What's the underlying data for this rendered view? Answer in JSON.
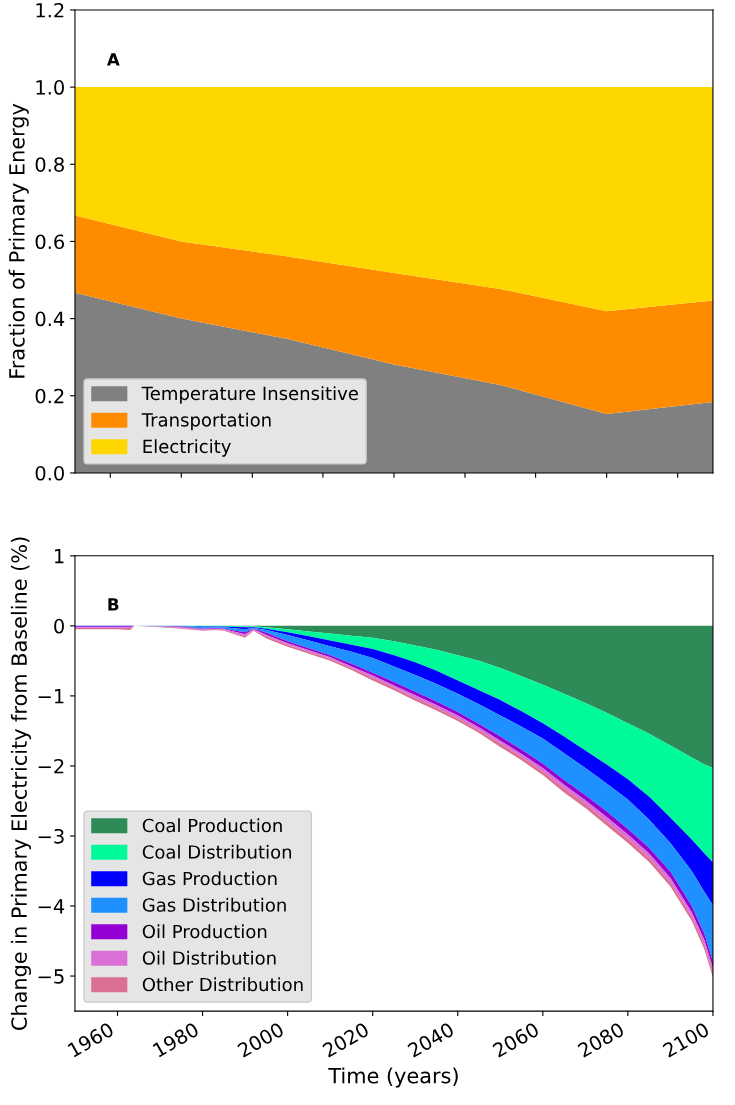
{
  "chart_data": [
    {
      "type": "area",
      "stacked": true,
      "ylabel": "Fraction of Primary Energy",
      "annotations": [
        "A"
      ],
      "legend": "bottom left",
      "tick_labels": "y",
      "x": [
        1950,
        1975,
        2000,
        2025,
        2050,
        2075,
        2100
      ],
      "xlim": [
        1950,
        2100
      ],
      "xticks": [
        {
          "value": 1958.3,
          "label": null
        },
        {
          "value": 1975,
          "label": null
        },
        {
          "value": 1991.7,
          "label": null
        },
        {
          "value": 2008.3,
          "label": null
        },
        {
          "value": 2025,
          "label": null
        },
        {
          "value": 2041.7,
          "label": null
        },
        {
          "value": 2058.3,
          "label": null
        },
        {
          "value": 2075,
          "label": null
        },
        {
          "value": 2091.7,
          "label": null
        }
      ],
      "ylim": [
        0,
        1.2
      ],
      "yticks": [
        {
          "value": 0,
          "label": "0.0"
        },
        {
          "value": 0.2,
          "label": "0.2"
        },
        {
          "value": 0.4,
          "label": "0.4"
        },
        {
          "value": 0.6,
          "label": "0.6"
        },
        {
          "value": 0.8,
          "label": "0.8"
        },
        {
          "value": 1.0,
          "label": "1.0"
        },
        {
          "value": 1.2,
          "label": "1.2"
        }
      ],
      "series": [
        {
          "name": "Temperature Insensitive",
          "color": "#808080",
          "values": [
            0.467,
            0.4,
            0.347,
            0.281,
            0.228,
            0.153,
            0.184
          ]
        },
        {
          "name": "Transportation",
          "color": "#ff8c00",
          "values": [
            0.2,
            0.2,
            0.214,
            0.237,
            0.249,
            0.266,
            0.263
          ]
        },
        {
          "name": "Electricity",
          "color": "#ffd700",
          "values": [
            0.333,
            0.4,
            0.439,
            0.482,
            0.523,
            0.581,
            0.553
          ]
        }
      ]
    },
    {
      "type": "area",
      "stacked": true,
      "ylabel": "Change in Primary Electricity from Baseline (%)",
      "xlabel": "Time (years)",
      "annotations": [
        "B"
      ],
      "legend": "bottom left",
      "x": [
        1950,
        1960,
        1963,
        1964,
        1970,
        1975,
        1980,
        1983,
        1985,
        1990,
        1992,
        1995,
        2000,
        2005,
        2010,
        2015,
        2020,
        2025,
        2030,
        2035,
        2040,
        2045,
        2050,
        2055,
        2060,
        2065,
        2070,
        2075,
        2080,
        2085,
        2090,
        2095,
        2098,
        2100
      ],
      "xlim": [
        1950,
        2100
      ],
      "xticks": [
        1960,
        1980,
        2000,
        2020,
        2040,
        2060,
        2080,
        2100
      ],
      "ylim": [
        -5.5,
        1
      ],
      "yticks": [
        {
          "value": -5,
          "label": "−5"
        },
        {
          "value": -4,
          "label": "−4"
        },
        {
          "value": -3,
          "label": "−3"
        },
        {
          "value": -2,
          "label": "−2"
        },
        {
          "value": -1,
          "label": "−1"
        },
        {
          "value": 0,
          "label": "0"
        },
        {
          "value": 1,
          "label": "1"
        }
      ],
      "series": [
        {
          "name": "Coal Production",
          "color": "#2e8b57",
          "values": [
            0,
            0,
            0,
            0,
            0,
            0,
            0,
            0,
            0,
            -0.01,
            -0.01,
            -0.02,
            -0.05,
            -0.08,
            -0.11,
            -0.14,
            -0.17,
            -0.22,
            -0.28,
            -0.34,
            -0.42,
            -0.5,
            -0.6,
            -0.72,
            -0.84,
            -0.97,
            -1.1,
            -1.24,
            -1.39,
            -1.54,
            -1.71,
            -1.88,
            -1.98,
            -2.03
          ]
        },
        {
          "name": "Coal Distribution",
          "color": "#00fa9a",
          "values": [
            0,
            0,
            0,
            0,
            0,
            0,
            -0.01,
            -0.01,
            -0.01,
            -0.01,
            -0.01,
            -0.02,
            -0.04,
            -0.07,
            -0.1,
            -0.13,
            -0.16,
            -0.2,
            -0.24,
            -0.3,
            -0.36,
            -0.42,
            -0.46,
            -0.5,
            -0.55,
            -0.61,
            -0.68,
            -0.74,
            -0.8,
            -0.9,
            -1.03,
            -1.17,
            -1.27,
            -1.35
          ]
        },
        {
          "name": "Gas Production",
          "color": "#0000ff",
          "values": [
            -0.01,
            -0.01,
            -0.01,
            0,
            0,
            0,
            -0.01,
            -0.01,
            -0.01,
            -0.03,
            -0.01,
            -0.02,
            -0.04,
            -0.06,
            -0.08,
            -0.1,
            -0.13,
            -0.16,
            -0.18,
            -0.19,
            -0.19,
            -0.2,
            -0.22,
            -0.22,
            -0.22,
            -0.24,
            -0.25,
            -0.27,
            -0.29,
            -0.33,
            -0.36,
            -0.45,
            -0.55,
            -0.61
          ]
        },
        {
          "name": "Gas Distribution",
          "color": "#1e90ff",
          "values": [
            0,
            0,
            0,
            0,
            -0.01,
            -0.01,
            -0.02,
            -0.01,
            -0.02,
            -0.04,
            -0.01,
            -0.04,
            -0.09,
            -0.11,
            -0.13,
            -0.17,
            -0.21,
            -0.22,
            -0.24,
            -0.25,
            -0.26,
            -0.28,
            -0.3,
            -0.33,
            -0.36,
            -0.38,
            -0.39,
            -0.4,
            -0.42,
            -0.4,
            -0.41,
            -0.5,
            -0.6,
            -0.81
          ]
        },
        {
          "name": "Oil Production",
          "color": "#9400d3",
          "values": [
            -0.01,
            -0.01,
            -0.01,
            0,
            0,
            -0.01,
            -0.01,
            -0.01,
            -0.01,
            -0.03,
            -0.01,
            -0.03,
            -0.03,
            -0.03,
            -0.03,
            -0.04,
            -0.04,
            -0.05,
            -0.05,
            -0.05,
            -0.05,
            -0.05,
            -0.06,
            -0.06,
            -0.06,
            -0.07,
            -0.07,
            -0.08,
            -0.08,
            -0.08,
            -0.09,
            -0.09,
            -0.09,
            -0.09
          ]
        },
        {
          "name": "Oil Distribution",
          "color": "#da70d6",
          "values": [
            -0.01,
            -0.01,
            -0.01,
            0,
            0,
            -0.01,
            -0.01,
            -0.01,
            -0.01,
            -0.03,
            -0.01,
            -0.02,
            -0.02,
            -0.02,
            -0.02,
            -0.02,
            -0.03,
            -0.03,
            -0.04,
            -0.04,
            -0.04,
            -0.04,
            -0.04,
            -0.04,
            -0.05,
            -0.05,
            -0.05,
            -0.06,
            -0.06,
            -0.06,
            -0.06,
            -0.06,
            -0.07,
            -0.07
          ]
        },
        {
          "name": "Other Distribution",
          "color": "#db7093",
          "values": [
            -0.02,
            -0.02,
            -0.03,
            0,
            -0.01,
            -0.01,
            -0.01,
            -0.01,
            -0.01,
            -0.02,
            -0.01,
            -0.03,
            -0.03,
            -0.03,
            -0.03,
            -0.03,
            -0.04,
            -0.04,
            -0.04,
            -0.04,
            -0.04,
            -0.04,
            -0.05,
            -0.05,
            -0.05,
            -0.06,
            -0.06,
            -0.06,
            -0.06,
            -0.06,
            -0.06,
            -0.06,
            -0.06,
            -0.06
          ]
        }
      ]
    }
  ]
}
